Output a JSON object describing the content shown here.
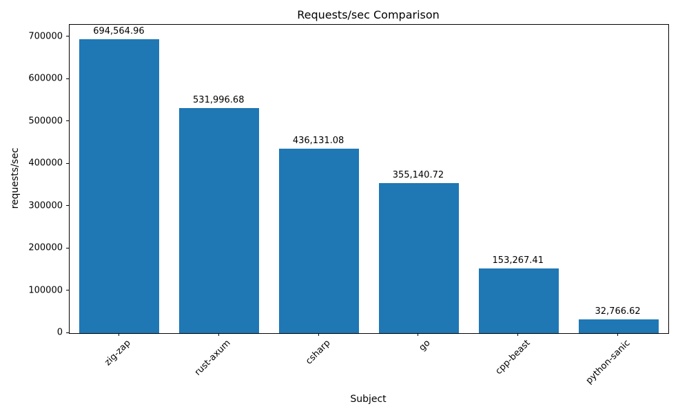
{
  "chart_data": {
    "type": "bar",
    "title": "Requests/sec Comparison",
    "xlabel": "Subject",
    "ylabel": "requests/sec",
    "categories": [
      "zig-zap",
      "rust-axum",
      "csharp",
      "go",
      "cpp-beast",
      "python-sanic"
    ],
    "values": [
      694564.96,
      531996.68,
      436131.08,
      355140.72,
      153267.41,
      32766.62
    ],
    "value_labels": [
      "694,564.96",
      "531,996.68",
      "436,131.08",
      "355,140.72",
      "153,267.41",
      "32,766.62"
    ],
    "ytick_labels": [
      "0",
      "100000",
      "200000",
      "300000",
      "400000",
      "500000",
      "600000",
      "700000"
    ],
    "yticks": [
      0,
      100000,
      200000,
      300000,
      400000,
      500000,
      600000,
      700000
    ],
    "ylim": [
      0,
      729293
    ],
    "bar_color": "#1f77b4",
    "grid": false,
    "legend": null,
    "background_color": "#ffffff"
  }
}
